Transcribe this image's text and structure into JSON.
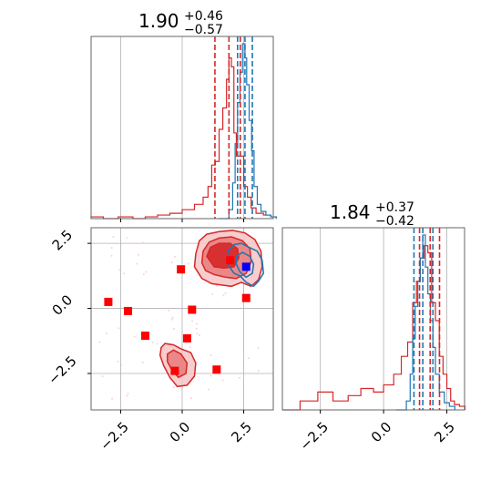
{
  "colors": {
    "red": "#d62728",
    "blue": "#1f77b4",
    "marker_red": "#ff0000",
    "marker_blue": "#0000ff",
    "grid": "#b0b0b0"
  },
  "chart_data": [
    {
      "type": "histogram",
      "panel": "top-left",
      "title_value": "1.90",
      "title_plus": "+0.46",
      "title_minus": "−0.57",
      "xlim": [
        -3.7,
        3.7
      ],
      "grid": true,
      "red_quantiles": [
        1.33,
        1.9,
        2.36
      ],
      "blue_quantiles": [
        2.25,
        2.55,
        2.85
      ],
      "red_hist": [
        [
          -3.7,
          0.01
        ],
        [
          -3.2,
          0.0
        ],
        [
          -2.6,
          0.01
        ],
        [
          -2.0,
          0.0
        ],
        [
          -1.5,
          0.01
        ],
        [
          -1.0,
          0.02
        ],
        [
          -0.5,
          0.03
        ],
        [
          0.0,
          0.05
        ],
        [
          0.5,
          0.08
        ],
        [
          0.85,
          0.12
        ],
        [
          1.05,
          0.18
        ],
        [
          1.2,
          0.3
        ],
        [
          1.35,
          0.32
        ],
        [
          1.5,
          0.5
        ],
        [
          1.65,
          0.62
        ],
        [
          1.8,
          0.78
        ],
        [
          1.9,
          0.9
        ],
        [
          2.0,
          0.85
        ],
        [
          2.1,
          0.48
        ],
        [
          2.2,
          0.35
        ],
        [
          2.35,
          0.35
        ],
        [
          2.5,
          0.18
        ],
        [
          2.65,
          0.12
        ],
        [
          2.8,
          0.06
        ],
        [
          3.0,
          0.03
        ],
        [
          3.3,
          0.02
        ],
        [
          3.6,
          0.01
        ]
      ],
      "blue_hist": [
        [
          1.5,
          0.0
        ],
        [
          1.9,
          0.05
        ],
        [
          2.05,
          0.2
        ],
        [
          2.15,
          0.42
        ],
        [
          2.25,
          0.65
        ],
        [
          2.35,
          0.82
        ],
        [
          2.45,
          0.98
        ],
        [
          2.55,
          0.9
        ],
        [
          2.62,
          0.75
        ],
        [
          2.72,
          0.55
        ],
        [
          2.82,
          0.38
        ],
        [
          2.92,
          0.18
        ],
        [
          3.05,
          0.08
        ],
        [
          3.2,
          0.04
        ],
        [
          3.4,
          0.02
        ],
        [
          3.6,
          0.01
        ]
      ]
    },
    {
      "type": "scatter",
      "panel": "bottom-left",
      "xlim": [
        -3.7,
        3.7
      ],
      "ylim": [
        -3.9,
        3.1
      ],
      "xticks": [
        "−2.5",
        "0.0",
        "2.5"
      ],
      "yticks": [
        "−2.5",
        "0.0",
        "2.5"
      ],
      "xtick_values": [
        -2.5,
        0.0,
        2.5
      ],
      "ytick_values": [
        -2.5,
        0.0,
        2.5
      ],
      "grid": true,
      "red_points": [
        [
          -3.0,
          0.25
        ],
        [
          -2.2,
          -0.1
        ],
        [
          -1.5,
          -1.05
        ],
        [
          -0.05,
          1.5
        ],
        [
          0.4,
          -0.05
        ],
        [
          0.2,
          -1.15
        ],
        [
          1.4,
          -2.35
        ],
        [
          -0.3,
          -2.4
        ],
        [
          1.95,
          1.85
        ],
        [
          2.6,
          0.4
        ]
      ],
      "blue_points": [
        [
          2.6,
          1.6
        ]
      ],
      "contours": [
        {
          "series": "red",
          "level": "outer",
          "points": [
            [
              0.5,
              1.6
            ],
            [
              0.55,
              2.1
            ],
            [
              0.7,
              2.6
            ],
            [
              1.0,
              2.85
            ],
            [
              1.5,
              2.95
            ],
            [
              2.05,
              3.0
            ],
            [
              2.55,
              2.9
            ],
            [
              2.95,
              2.65
            ],
            [
              3.2,
              2.2
            ],
            [
              3.25,
              1.6
            ],
            [
              3.1,
              1.1
            ],
            [
              2.8,
              0.85
            ],
            [
              2.4,
              1.0
            ],
            [
              2.0,
              0.85
            ],
            [
              1.6,
              0.9
            ],
            [
              1.2,
              0.95
            ],
            [
              0.8,
              1.15
            ]
          ]
        },
        {
          "series": "red",
          "level": "middle",
          "points": [
            [
              0.8,
              1.75
            ],
            [
              0.85,
              2.2
            ],
            [
              1.1,
              2.55
            ],
            [
              1.5,
              2.7
            ],
            [
              2.0,
              2.75
            ],
            [
              2.45,
              2.6
            ],
            [
              2.75,
              2.3
            ],
            [
              2.8,
              1.8
            ],
            [
              2.6,
              1.35
            ],
            [
              2.2,
              1.15
            ],
            [
              1.75,
              1.2
            ],
            [
              1.3,
              1.3
            ],
            [
              0.95,
              1.45
            ]
          ]
        },
        {
          "series": "red",
          "level": "inner",
          "points": [
            [
              1.0,
              2.0
            ],
            [
              1.15,
              2.35
            ],
            [
              1.5,
              2.5
            ],
            [
              1.95,
              2.5
            ],
            [
              2.25,
              2.3
            ],
            [
              2.3,
              1.95
            ],
            [
              2.1,
              1.6
            ],
            [
              1.7,
              1.55
            ],
            [
              1.3,
              1.6
            ]
          ]
        },
        {
          "series": "red",
          "level": "outer",
          "points": [
            [
              -0.85,
              -1.5
            ],
            [
              -0.7,
              -1.35
            ],
            [
              -0.35,
              -1.4
            ],
            [
              -0.05,
              -1.55
            ],
            [
              0.35,
              -1.7
            ],
            [
              0.55,
              -2.1
            ],
            [
              0.5,
              -2.6
            ],
            [
              0.2,
              -2.95
            ],
            [
              -0.2,
              -3.0
            ],
            [
              -0.5,
              -2.65
            ],
            [
              -0.75,
              -2.2
            ],
            [
              -0.9,
              -1.8
            ]
          ]
        },
        {
          "series": "red",
          "level": "middle",
          "points": [
            [
              -0.6,
              -1.75
            ],
            [
              -0.35,
              -1.6
            ],
            [
              -0.05,
              -1.75
            ],
            [
              0.2,
              -2.1
            ],
            [
              0.15,
              -2.5
            ],
            [
              -0.15,
              -2.65
            ],
            [
              -0.4,
              -2.4
            ],
            [
              -0.6,
              -2.05
            ]
          ]
        },
        {
          "series": "blue",
          "level": "outer",
          "points": [
            [
              1.85,
              2.2
            ],
            [
              2.1,
              2.45
            ],
            [
              2.4,
              2.5
            ],
            [
              2.7,
              2.35
            ],
            [
              3.05,
              2.2
            ],
            [
              3.25,
              1.85
            ],
            [
              3.3,
              1.35
            ],
            [
              3.1,
              1.05
            ],
            [
              2.9,
              0.85
            ],
            [
              2.6,
              1.0
            ],
            [
              2.35,
              1.25
            ],
            [
              2.1,
              1.35
            ],
            [
              1.85,
              1.7
            ]
          ]
        },
        {
          "series": "blue",
          "level": "inner",
          "points": [
            [
              2.2,
              2.0
            ],
            [
              2.45,
              2.15
            ],
            [
              2.75,
              2.0
            ],
            [
              2.9,
              1.7
            ],
            [
              2.85,
              1.35
            ],
            [
              2.6,
              1.2
            ],
            [
              2.35,
              1.4
            ],
            [
              2.2,
              1.7
            ]
          ]
        }
      ]
    },
    {
      "type": "histogram",
      "panel": "bottom-right",
      "title_value": "1.84",
      "title_plus": "+0.37",
      "title_minus": "−0.42",
      "xlim": [
        -4.0,
        3.2
      ],
      "xticks": [
        "−2.5",
        "0.0",
        "2.5"
      ],
      "xtick_values": [
        -2.5,
        0.0,
        2.5
      ],
      "grid": true,
      "red_quantiles": [
        1.42,
        1.84,
        2.21
      ],
      "blue_quantiles": [
        1.2,
        1.55,
        1.95
      ],
      "red_hist": [
        [
          -4.0,
          0.0
        ],
        [
          -3.3,
          0.05
        ],
        [
          -2.6,
          0.1
        ],
        [
          -2.0,
          0.05
        ],
        [
          -1.4,
          0.08
        ],
        [
          -0.9,
          0.12
        ],
        [
          -0.4,
          0.1
        ],
        [
          0.0,
          0.14
        ],
        [
          0.4,
          0.2
        ],
        [
          0.7,
          0.3
        ],
        [
          0.95,
          0.38
        ],
        [
          1.15,
          0.6
        ],
        [
          1.3,
          0.72
        ],
        [
          1.45,
          0.85
        ],
        [
          1.6,
          0.92
        ],
        [
          1.75,
          0.88
        ],
        [
          1.9,
          0.6
        ],
        [
          2.05,
          0.5
        ],
        [
          2.2,
          0.3
        ],
        [
          2.35,
          0.2
        ],
        [
          2.5,
          0.12
        ],
        [
          2.65,
          0.05
        ],
        [
          2.8,
          0.03
        ],
        [
          3.0,
          0.02
        ]
      ],
      "blue_hist": [
        [
          0.5,
          0.0
        ],
        [
          0.9,
          0.05
        ],
        [
          1.05,
          0.2
        ],
        [
          1.15,
          0.4
        ],
        [
          1.25,
          0.58
        ],
        [
          1.35,
          0.72
        ],
        [
          1.45,
          0.85
        ],
        [
          1.55,
          0.98
        ],
        [
          1.65,
          0.8
        ],
        [
          1.75,
          0.65
        ],
        [
          1.85,
          0.5
        ],
        [
          1.95,
          0.35
        ],
        [
          2.05,
          0.2
        ],
        [
          2.2,
          0.1
        ],
        [
          2.4,
          0.04
        ],
        [
          2.6,
          0.02
        ]
      ]
    }
  ]
}
